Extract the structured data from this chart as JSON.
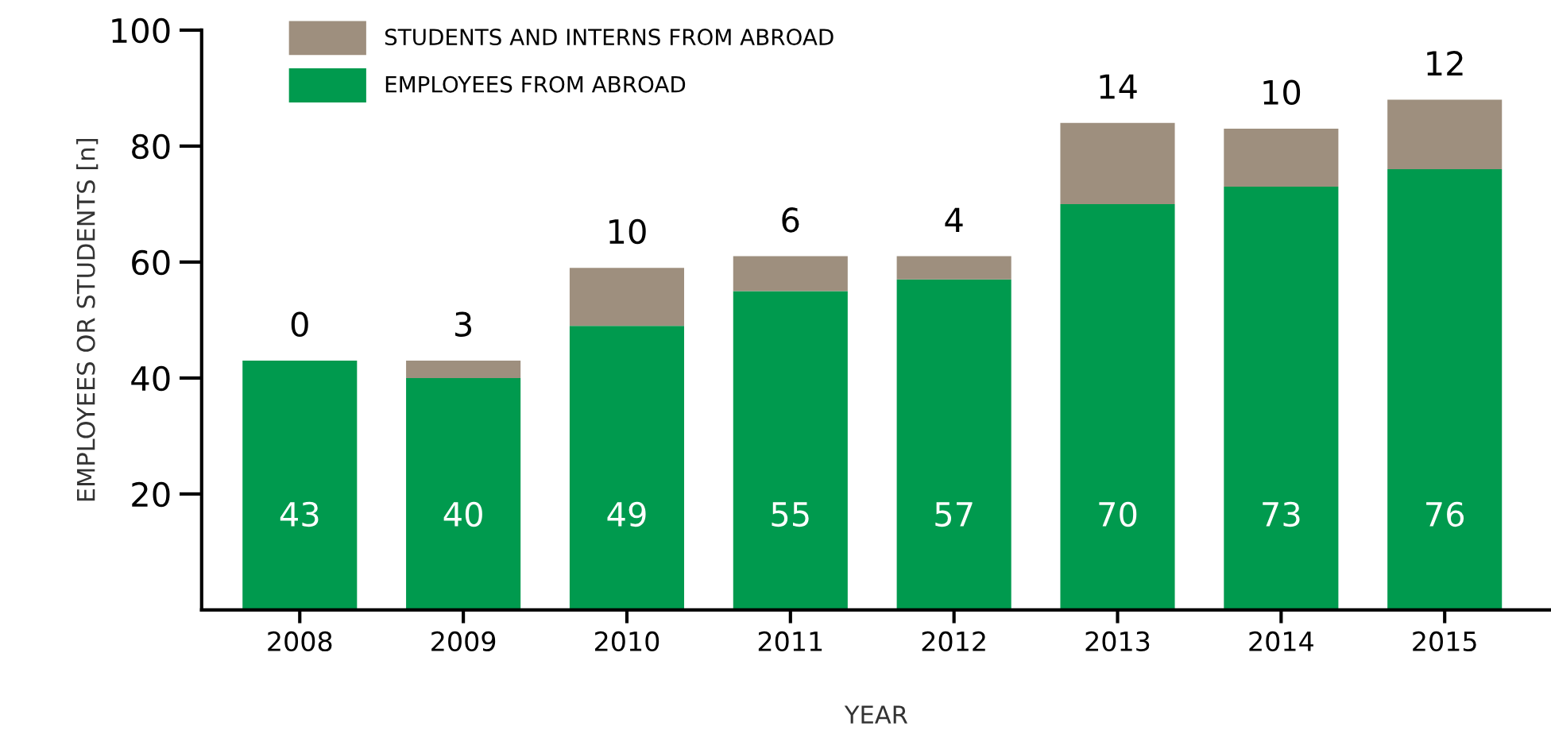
{
  "chart_data": {
    "type": "bar",
    "stacked": true,
    "xlabel": "YEAR",
    "ylabel": "EMPLOYEES OR STUDENTS [n]",
    "categories": [
      "2008",
      "2009",
      "2010",
      "2011",
      "2012",
      "2013",
      "2014",
      "2015"
    ],
    "series": [
      {
        "name": "EMPLOYEES FROM ABROAD",
        "color": "#009a4e",
        "values": [
          43,
          40,
          49,
          55,
          57,
          70,
          73,
          76
        ]
      },
      {
        "name": "STUDENTS AND INTERNS FROM ABROAD",
        "color": "#9e8f7e",
        "values": [
          0,
          3,
          10,
          6,
          4,
          14,
          10,
          12
        ]
      }
    ],
    "ylim": [
      0,
      100
    ],
    "yticks": [
      20,
      40,
      60,
      80,
      100
    ],
    "data_labels": true,
    "legend": "top left",
    "grid": false
  }
}
